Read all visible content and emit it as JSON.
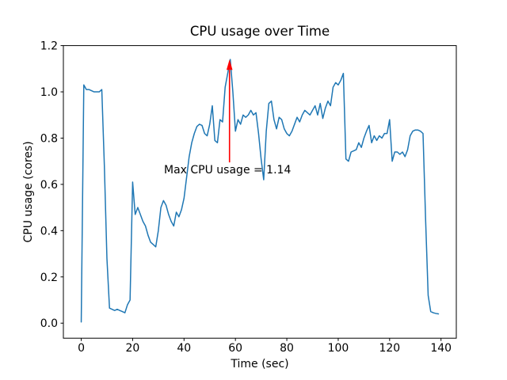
{
  "chart_data": {
    "type": "line",
    "title": "CPU usage over Time",
    "xlabel": "Time (sec)",
    "ylabel": "CPU usage (cores)",
    "x_start": 0,
    "x_step": 1,
    "values": [
      0.005,
      1.03,
      1.01,
      1.01,
      1.005,
      1.0,
      1.0,
      1.0,
      1.01,
      0.68,
      0.28,
      0.065,
      0.06,
      0.055,
      0.06,
      0.055,
      0.05,
      0.045,
      0.08,
      0.1,
      0.61,
      0.47,
      0.5,
      0.47,
      0.44,
      0.42,
      0.38,
      0.35,
      0.34,
      0.33,
      0.4,
      0.5,
      0.53,
      0.51,
      0.47,
      0.44,
      0.42,
      0.48,
      0.46,
      0.49,
      0.54,
      0.63,
      0.72,
      0.78,
      0.82,
      0.85,
      0.86,
      0.855,
      0.82,
      0.81,
      0.86,
      0.94,
      0.79,
      0.78,
      0.88,
      0.87,
      1.02,
      1.08,
      1.14,
      1.0,
      0.83,
      0.88,
      0.86,
      0.9,
      0.89,
      0.9,
      0.92,
      0.9,
      0.91,
      0.82,
      0.71,
      0.62,
      0.83,
      0.95,
      0.96,
      0.88,
      0.84,
      0.89,
      0.88,
      0.84,
      0.82,
      0.81,
      0.83,
      0.86,
      0.89,
      0.87,
      0.9,
      0.92,
      0.91,
      0.9,
      0.92,
      0.94,
      0.9,
      0.95,
      0.885,
      0.93,
      0.96,
      0.94,
      1.02,
      1.04,
      1.03,
      1.05,
      1.08,
      0.71,
      0.7,
      0.74,
      0.745,
      0.75,
      0.78,
      0.76,
      0.8,
      0.83,
      0.855,
      0.78,
      0.81,
      0.79,
      0.81,
      0.8,
      0.82,
      0.82,
      0.88,
      0.7,
      0.74,
      0.74,
      0.73,
      0.74,
      0.72,
      0.75,
      0.81,
      0.83,
      0.835,
      0.835,
      0.83,
      0.82,
      0.45,
      0.12,
      0.05,
      0.045,
      0.042,
      0.04
    ],
    "xlim": [
      -6.95,
      145.95
    ],
    "ylim": [
      -0.065,
      1.2
    ],
    "xticks": {
      "values": [
        0,
        20,
        40,
        60,
        80,
        100,
        120,
        140
      ],
      "labels": [
        "0",
        "20",
        "40",
        "60",
        "80",
        "100",
        "120",
        "140"
      ]
    },
    "yticks": {
      "values": [
        0.0,
        0.2,
        0.4,
        0.6,
        0.8,
        1.0,
        1.2
      ],
      "labels": [
        "0.0",
        "0.2",
        "0.4",
        "0.6",
        "0.8",
        "1.0",
        "1.2"
      ]
    },
    "line_color": "#1f77b4",
    "grid": false,
    "annotation": {
      "text": "Max CPU usage = 1.14",
      "color": "#ff0000",
      "text_x": 32.2,
      "text_y": 0.648,
      "arrow_x": 57.7,
      "arrow_tail_y": 0.695,
      "arrow_head_base_y": 1.095,
      "arrow_tip_y": 1.14
    }
  }
}
